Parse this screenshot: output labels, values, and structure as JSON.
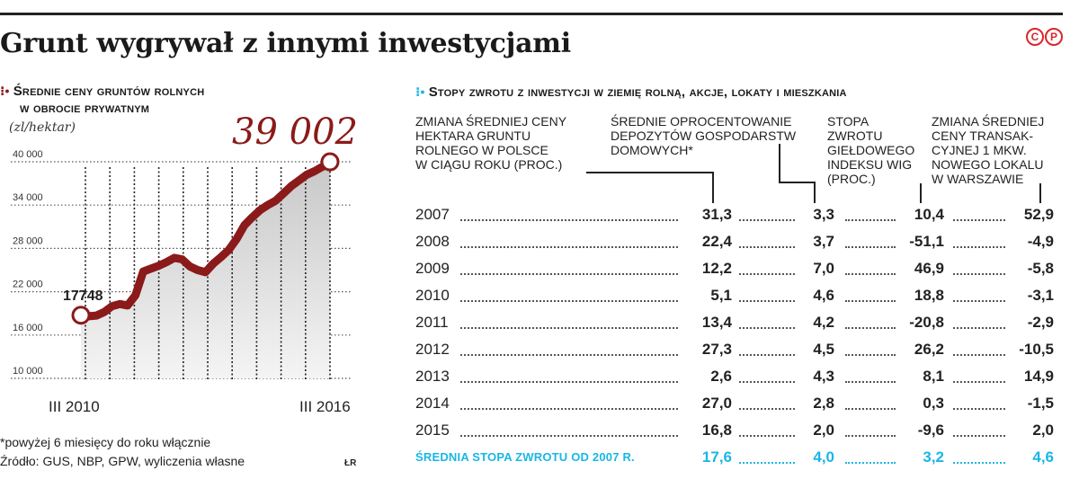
{
  "headline": "Grunt wygrywał z innymi inwestycjami",
  "logo": {
    "c": "C",
    "p": "P"
  },
  "left_panel": {
    "title_line1": "Średnie ceny gruntów rolnych",
    "title_line2": "w obrocie prywatnym",
    "unit": "(zl/hektar)",
    "highlight_value": "39 002",
    "accent_color": "#8b1a1a"
  },
  "right_panel": {
    "title": "Stopy zwrotu z inwestycji w ziemię rolną, akcje, lokaty i mieszkania",
    "accent_color": "#19b6e6",
    "columns": [
      "ZMIANA ŚREDNIEJ CENY\nHEKTARA GRUNTU\nROLNEGO W POLSCE\nW CIĄGU ROKU (PROC.)",
      "ŚREDNIE OPROCENTOWANIE\nDEPOZYTÓW GOSPODARSTW\nDOMOWYCH*",
      "STOPA\nZWROTU\nGIEŁDOWEGO\nINDEKSU WIG\n(PROC.)",
      "ZMIANA ŚREDNIEJ\nCENY TRANSAK-\nCYJNEJ 1 MKW.\nNOWEGO LOKALU\nW WARSZAWIE"
    ],
    "rows": [
      {
        "year": "2007",
        "values": [
          "31,3",
          "3,3",
          "10,4",
          "52,9"
        ]
      },
      {
        "year": "2008",
        "values": [
          "22,4",
          "3,7",
          "-51,1",
          "-4,9"
        ]
      },
      {
        "year": "2009",
        "values": [
          "12,2",
          "7,0",
          "46,9",
          "-5,8"
        ]
      },
      {
        "year": "2010",
        "values": [
          "5,1",
          "4,6",
          "18,8",
          "-3,1"
        ]
      },
      {
        "year": "2011",
        "values": [
          "13,4",
          "4,2",
          "-20,8",
          "-2,9"
        ]
      },
      {
        "year": "2012",
        "values": [
          "27,3",
          "4,5",
          "26,2",
          "-10,5"
        ]
      },
      {
        "year": "2013",
        "values": [
          "2,6",
          "4,3",
          "8,1",
          "14,9"
        ]
      },
      {
        "year": "2014",
        "values": [
          "27,0",
          "2,8",
          "0,3",
          "-1,5"
        ]
      },
      {
        "year": "2015",
        "values": [
          "16,8",
          "2,0",
          "-9,6",
          "2,0"
        ]
      }
    ],
    "average": {
      "label": "ŚREDNIA STOPA ZWROTU OD 2007 R.",
      "values": [
        "17,6",
        "4,0",
        "3,2",
        "4,6"
      ]
    }
  },
  "footnote": "*powyżej 6 miesięcy do roku włącznie",
  "source": "Źródło: GUS, NBP, GPW, wyliczenia własne",
  "author": "ŁR",
  "chart_data": [
    {
      "type": "area",
      "title": "Średnie ceny gruntów rolnych w obrocie prywatnym",
      "ylabel": "(zl/hektar)",
      "xlabel": "",
      "x_tick_labels": [
        "III 2010",
        "III 2016"
      ],
      "y_ticks": [
        10000,
        16000,
        22000,
        28000,
        34000,
        40000
      ],
      "y_tick_labels": [
        "10 000",
        "16 000",
        "22 000",
        "28 000",
        "34 000",
        "40 000"
      ],
      "ylim": [
        10000,
        40000
      ],
      "grid": true,
      "start_label": "17748",
      "end_label": "39 002",
      "series": [
        {
          "values": [
            17748,
            17600,
            17700,
            18200,
            19000,
            19300,
            19100,
            20500,
            23800,
            24200,
            24600,
            25100,
            25700,
            25500,
            24500,
            24000,
            23700,
            24900,
            25800,
            26800,
            28300,
            30200,
            31300,
            32300,
            33000,
            33600,
            34600,
            35600,
            36400,
            37200,
            37700,
            38300,
            39002
          ]
        }
      ]
    },
    {
      "type": "table",
      "title": "Stopy zwrotu z inwestycji w ziemię rolną, akcje, lokaty i mieszkania",
      "columns": [
        "Zmiana średniej ceny hektara gruntu rolnego w Polsce w ciągu roku (proc.)",
        "Średnie oprocentowanie depozytów gospodarstw domowych*",
        "Stopa zwrotu giełdowego indeksu WIG (proc.)",
        "Zmiana średniej ceny transakcyjnej 1 mkw. nowego lokalu w Warszawie"
      ],
      "categories": [
        "2007",
        "2008",
        "2009",
        "2010",
        "2011",
        "2012",
        "2013",
        "2014",
        "2015",
        "Średnia stopa zwrotu od 2007 r."
      ]
    }
  ]
}
